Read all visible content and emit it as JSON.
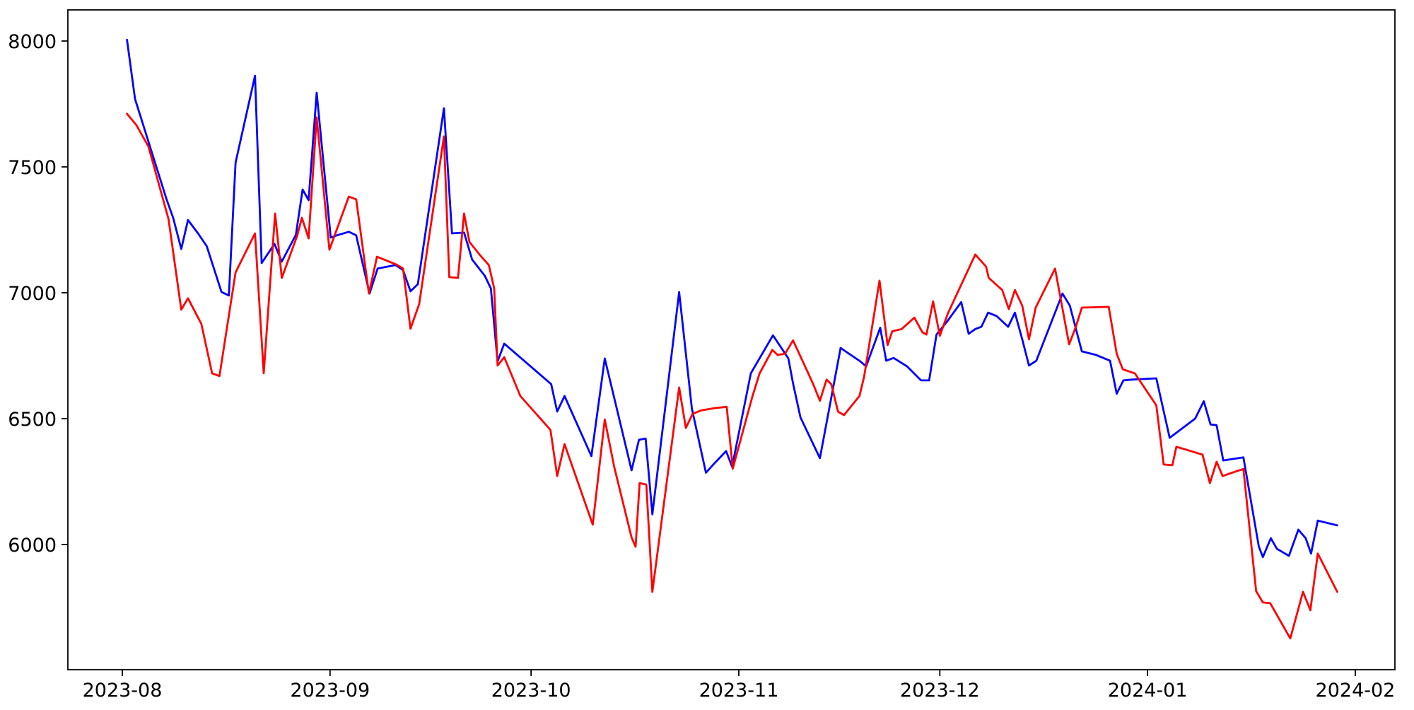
{
  "chart_data": {
    "type": "line",
    "title": "",
    "xlabel": "",
    "ylabel": "",
    "grid": false,
    "legend": false,
    "x_axis": {
      "start_date": "2023-08-01",
      "unit_of_x": "days since 2023-08-01",
      "ticks": [
        {
          "label": "2023-08",
          "day": 0
        },
        {
          "label": "2023-09",
          "day": 31
        },
        {
          "label": "2023-10",
          "day": 61
        },
        {
          "label": "2023-11",
          "day": 92
        },
        {
          "label": "2023-12",
          "day": 122
        },
        {
          "label": "2024-01",
          "day": 153
        },
        {
          "label": "2024-02",
          "day": 184
        }
      ]
    },
    "y_axis": {
      "ticks": [
        {
          "label": "8000",
          "value": 8000
        },
        {
          "label": "7500",
          "value": 7500
        },
        {
          "label": "7000",
          "value": 7000
        },
        {
          "label": "6500",
          "value": 6500
        },
        {
          "label": "6000",
          "value": 6000
        }
      ],
      "range": [
        5503,
        8121
      ]
    },
    "series": [
      {
        "name": "blue",
        "color": "#0000ff",
        "points": [
          [
            0.7,
            8005
          ],
          [
            1.9,
            7770
          ],
          [
            6.6,
            7371
          ],
          [
            7.6,
            7297
          ],
          [
            8.8,
            7174
          ],
          [
            9.8,
            7289
          ],
          [
            11.3,
            7236
          ],
          [
            12.6,
            7185
          ],
          [
            14.8,
            7003
          ],
          [
            15.9,
            6989
          ],
          [
            16.9,
            7517
          ],
          [
            19.8,
            7862
          ],
          [
            20.8,
            7118
          ],
          [
            22.7,
            7194
          ],
          [
            23.8,
            7124
          ],
          [
            25.9,
            7230
          ],
          [
            26.9,
            7410
          ],
          [
            27.8,
            7368
          ],
          [
            29,
            7795
          ],
          [
            31.1,
            7219
          ],
          [
            32,
            7228
          ],
          [
            33.8,
            7242
          ],
          [
            34.9,
            7228
          ],
          [
            36.9,
            6997
          ],
          [
            38.1,
            7096
          ],
          [
            40.8,
            7110
          ],
          [
            41.9,
            7090
          ],
          [
            43,
            7006
          ],
          [
            44.1,
            7034
          ],
          [
            48,
            7733
          ],
          [
            49.2,
            7236
          ],
          [
            51,
            7239
          ],
          [
            52.2,
            7132
          ],
          [
            54.1,
            7067
          ],
          [
            55,
            7017
          ],
          [
            56,
            6727
          ],
          [
            57,
            6798
          ],
          [
            64,
            6637
          ],
          [
            64.9,
            6528
          ],
          [
            66,
            6590
          ],
          [
            70,
            6351
          ],
          [
            72,
            6739
          ],
          [
            76,
            6295
          ],
          [
            77.1,
            6416
          ],
          [
            78.1,
            6421
          ],
          [
            79.1,
            6120
          ],
          [
            83.1,
            7003
          ],
          [
            85,
            6540
          ],
          [
            87.1,
            6285
          ],
          [
            88.2,
            6318
          ],
          [
            90.1,
            6371
          ],
          [
            91,
            6309
          ],
          [
            93.8,
            6680
          ],
          [
            97.1,
            6831
          ],
          [
            99.4,
            6739
          ],
          [
            100.1,
            6640
          ],
          [
            101.2,
            6505
          ],
          [
            104.1,
            6343
          ],
          [
            107.2,
            6781
          ],
          [
            108.1,
            6764
          ],
          [
            110,
            6730
          ],
          [
            111,
            6708
          ],
          [
            113.1,
            6861
          ],
          [
            114,
            6730
          ],
          [
            115.1,
            6741
          ],
          [
            117.1,
            6708
          ],
          [
            119.2,
            6652
          ],
          [
            120.4,
            6652
          ],
          [
            121.5,
            6834
          ],
          [
            123.2,
            6890
          ],
          [
            125.2,
            6963
          ],
          [
            126.3,
            6837
          ],
          [
            127.3,
            6856
          ],
          [
            128.2,
            6865
          ],
          [
            129.2,
            6921
          ],
          [
            130.5,
            6907
          ],
          [
            132.2,
            6865
          ],
          [
            133.2,
            6921
          ],
          [
            134.3,
            6815
          ],
          [
            135.3,
            6711
          ],
          [
            136.4,
            6730
          ],
          [
            140.3,
            6997
          ],
          [
            141.4,
            6949
          ],
          [
            143.2,
            6767
          ],
          [
            145.3,
            6753
          ],
          [
            147.4,
            6730
          ],
          [
            148.4,
            6599
          ],
          [
            149.4,
            6652
          ],
          [
            150.6,
            6655
          ],
          [
            154.3,
            6660
          ],
          [
            156.3,
            6424
          ],
          [
            160.1,
            6500
          ],
          [
            161.4,
            6569
          ],
          [
            162.4,
            6477
          ],
          [
            163.3,
            6474
          ],
          [
            164.3,
            6334
          ],
          [
            167.3,
            6346
          ],
          [
            169.6,
            5992
          ],
          [
            170.2,
            5950
          ],
          [
            171.4,
            6025
          ],
          [
            172.3,
            5983
          ],
          [
            174.1,
            5955
          ],
          [
            175.5,
            6059
          ],
          [
            176.6,
            6025
          ],
          [
            177.4,
            5964
          ],
          [
            178.4,
            6095
          ],
          [
            181.3,
            6076
          ]
        ]
      },
      {
        "name": "red",
        "color": "#ff0000",
        "points": [
          [
            0.7,
            7711
          ],
          [
            2.1,
            7666
          ],
          [
            3.9,
            7581
          ],
          [
            6.9,
            7292
          ],
          [
            8.8,
            6933
          ],
          [
            9.8,
            6978
          ],
          [
            11.8,
            6876
          ],
          [
            13.4,
            6680
          ],
          [
            14.5,
            6669
          ],
          [
            16.9,
            7081
          ],
          [
            19.8,
            7236
          ],
          [
            21.1,
            6680
          ],
          [
            22.8,
            7315
          ],
          [
            23.8,
            7059
          ],
          [
            26.1,
            7227
          ],
          [
            26.8,
            7298
          ],
          [
            27.8,
            7216
          ],
          [
            29,
            7697
          ],
          [
            30.9,
            7171
          ],
          [
            33.8,
            7382
          ],
          [
            34.9,
            7371
          ],
          [
            36.8,
            6997
          ],
          [
            38,
            7143
          ],
          [
            40.9,
            7112
          ],
          [
            41.9,
            7096
          ],
          [
            43,
            6857
          ],
          [
            44.3,
            6955
          ],
          [
            48,
            7621
          ],
          [
            48.8,
            7062
          ],
          [
            50.1,
            7059
          ],
          [
            51,
            7315
          ],
          [
            51.8,
            7202
          ],
          [
            53.3,
            7152
          ],
          [
            54.7,
            7110
          ],
          [
            55.5,
            7017
          ],
          [
            56,
            6711
          ],
          [
            57,
            6744
          ],
          [
            59.4,
            6590
          ],
          [
            63.9,
            6455
          ],
          [
            64.9,
            6272
          ],
          [
            66,
            6399
          ],
          [
            70.2,
            6079
          ],
          [
            72,
            6497
          ],
          [
            73.4,
            6309
          ],
          [
            76,
            6028
          ],
          [
            76.6,
            5991
          ],
          [
            77.2,
            6244
          ],
          [
            78.2,
            6238
          ],
          [
            79.1,
            5812
          ],
          [
            83.1,
            6624
          ],
          [
            84.1,
            6463
          ],
          [
            85.1,
            6519
          ],
          [
            86.4,
            6533
          ],
          [
            88.5,
            6542
          ],
          [
            90.2,
            6547
          ],
          [
            91.1,
            6301
          ],
          [
            94,
            6585
          ],
          [
            95.1,
            6680
          ],
          [
            97,
            6773
          ],
          [
            97.8,
            6753
          ],
          [
            98.9,
            6758
          ],
          [
            100.1,
            6811
          ],
          [
            101.5,
            6730
          ],
          [
            103.1,
            6637
          ],
          [
            104.1,
            6571
          ],
          [
            105.1,
            6655
          ],
          [
            105.8,
            6637
          ],
          [
            106.8,
            6528
          ],
          [
            107.7,
            6514
          ],
          [
            110,
            6590
          ],
          [
            110.7,
            6666
          ],
          [
            113,
            7048
          ],
          [
            114.2,
            6792
          ],
          [
            114.9,
            6847
          ],
          [
            116.3,
            6856
          ],
          [
            118.2,
            6901
          ],
          [
            119.4,
            6843
          ],
          [
            120,
            6834
          ],
          [
            121,
            6966
          ],
          [
            122,
            6829
          ],
          [
            123.2,
            6918
          ],
          [
            127.3,
            7152
          ],
          [
            128.9,
            7104
          ],
          [
            129.3,
            7059
          ],
          [
            131.3,
            7011
          ],
          [
            132.3,
            6935
          ],
          [
            133.2,
            7011
          ],
          [
            134.3,
            6949
          ],
          [
            135.3,
            6815
          ],
          [
            136.3,
            6941
          ],
          [
            139.2,
            7096
          ],
          [
            141.3,
            6795
          ],
          [
            142.3,
            6865
          ],
          [
            143.2,
            6941
          ],
          [
            147.2,
            6944
          ],
          [
            148.4,
            6758
          ],
          [
            149.3,
            6696
          ],
          [
            151.1,
            6680
          ],
          [
            154.3,
            6553
          ],
          [
            155.4,
            6318
          ],
          [
            156.7,
            6315
          ],
          [
            157.3,
            6388
          ],
          [
            158.5,
            6379
          ],
          [
            160.2,
            6365
          ],
          [
            161.2,
            6357
          ],
          [
            162.3,
            6244
          ],
          [
            163.3,
            6329
          ],
          [
            164.2,
            6272
          ],
          [
            165.7,
            6286
          ],
          [
            167.3,
            6300
          ],
          [
            169.2,
            5815
          ],
          [
            170.2,
            5770
          ],
          [
            171.3,
            5767
          ],
          [
            174.3,
            5627
          ],
          [
            176.2,
            5812
          ],
          [
            177.3,
            5739
          ],
          [
            178.4,
            5964
          ],
          [
            181.3,
            5812
          ]
        ]
      }
    ]
  }
}
